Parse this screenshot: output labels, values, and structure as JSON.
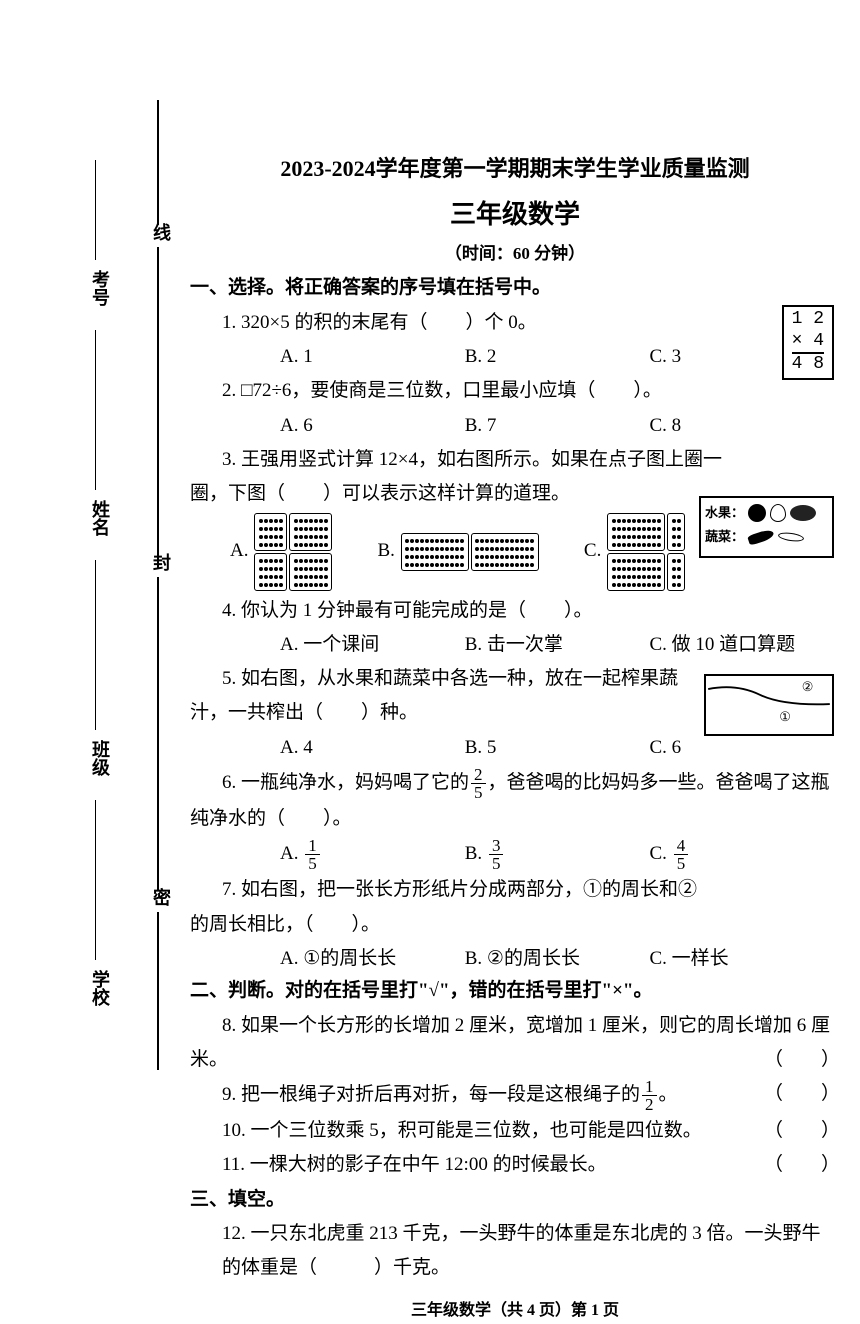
{
  "header": {
    "title1": "2023-2024学年度第一学期期末学生学业质量监测",
    "title2": "三年级数学",
    "duration": "（时间：60 分钟）"
  },
  "binding": {
    "chars": [
      "密",
      "封",
      "线"
    ],
    "labels": [
      "学校",
      "班级",
      "姓名",
      "考号"
    ]
  },
  "sections": {
    "s1": "一、选择。将正确答案的序号填在括号中。",
    "s2": "二、判断。对的在括号里打\"√\"，错的在括号里打\"×\"。",
    "s3": "三、填空。"
  },
  "q1": {
    "text": "1. 320×5 的积的末尾有（　　）个 0。",
    "A": "A. 1",
    "B": "B. 2",
    "C": "C. 3"
  },
  "q2": {
    "text": "2. □72÷6，要使商是三位数，口里最小应填（　　）。",
    "A": "A. 6",
    "B": "B. 7",
    "C": "C. 8"
  },
  "q3": {
    "line1": "3. 王强用竖式计算 12×4，如右图所示。如果在点子图上圈一",
    "line2": "圈，下图（　　）可以表示这样计算的道理。",
    "mult": {
      "r1": "1 2",
      "r2": "×   4",
      "r3": "4 8"
    },
    "dot_cfg": {
      "A": {
        "label": "A.",
        "blocks": [
          [
            4,
            5
          ],
          [
            4,
            7
          ]
        ],
        "rows2": [
          [
            4,
            5
          ],
          [
            4,
            7
          ]
        ]
      },
      "B": {
        "label": "B.",
        "blocks": [
          [
            4,
            12
          ],
          [
            4,
            12
          ]
        ]
      },
      "C": {
        "label": "C.",
        "blocks": [
          [
            4,
            10
          ],
          [
            4,
            2
          ]
        ],
        "rows2": [
          [
            4,
            10
          ],
          [
            4,
            2
          ]
        ]
      }
    }
  },
  "q4": {
    "text": "4. 你认为 1 分钟最有可能完成的是（　　）。",
    "A": "A. 一个课间",
    "B": "B. 击一次掌",
    "C": "C. 做 10 道口算题"
  },
  "q5": {
    "line1": "5. 如右图，从水果和蔬菜中各选一种，放在一起榨果蔬",
    "line2": "汁，一共榨出（　　）种。",
    "A": "A. 4",
    "B": "B. 5",
    "C": "C. 6",
    "box": {
      "row1": "水果：",
      "row2": "蔬菜："
    }
  },
  "q6": {
    "line1_a": "6. 一瓶纯净水，妈妈喝了它的",
    "line1_b": "，爸爸喝的比妈妈多一些。爸爸喝了这瓶",
    "line2": "纯净水的（　　）。",
    "frac_main": {
      "n": "2",
      "d": "5"
    },
    "A": "A.",
    "fracA": {
      "n": "1",
      "d": "5"
    },
    "B": "B.",
    "fracB": {
      "n": "3",
      "d": "5"
    },
    "C": "C.",
    "fracC": {
      "n": "4",
      "d": "5"
    }
  },
  "q7": {
    "line1": "7. 如右图，把一张长方形纸片分成两部分，①的周长和②",
    "line2": "的周长相比，（　　）。",
    "A": "A. ①的周长长",
    "B": "B. ②的周长长",
    "C": "C. 一样长",
    "fig": {
      "l1": "②",
      "l2": "①"
    }
  },
  "q8": {
    "line1": "8. 如果一个长方形的长增加 2 厘米，宽增加 1 厘米，则它的周长增加 6 厘",
    "line2_a": "米。",
    "paren": "（　　）"
  },
  "q9": {
    "text_a": "9. 把一根绳子对折后再对折，每一段是这根绳子的",
    "frac": {
      "n": "1",
      "d": "2"
    },
    "text_b": "。",
    "paren": "（　　）"
  },
  "q10": {
    "text": "10. 一个三位数乘 5，积可能是三位数，也可能是四位数。",
    "paren": "（　　）"
  },
  "q11": {
    "text": "11. 一棵大树的影子在中午 12:00 的时候最长。",
    "paren": "（　　）"
  },
  "q12": {
    "line1": "12. 一只东北虎重 213 千克，一头野牛的体重是东北虎的 3 倍。一头野牛",
    "line2": "的体重是（　　　）千克。"
  },
  "footer": "三年级数学（共 4 页）第 1 页",
  "style": {
    "page_bg": "#ffffff",
    "text_color": "#000000",
    "title1_fontsize": 22,
    "title2_fontsize": 26,
    "body_fontsize": 19,
    "opt_col_widths": [
      180,
      180,
      120
    ]
  }
}
